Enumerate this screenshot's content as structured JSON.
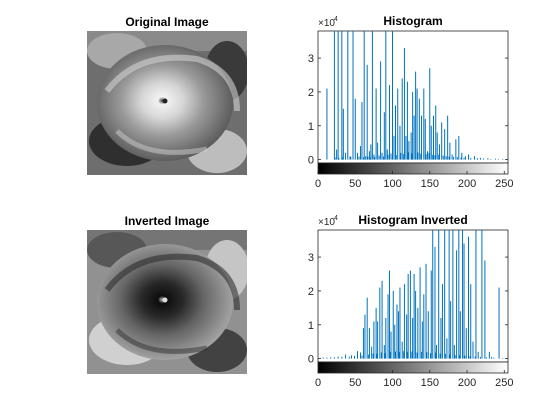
{
  "images": [
    {
      "title": "Original Image",
      "variant": "original"
    },
    {
      "title": "Inverted Image",
      "variant": "inverted"
    }
  ],
  "chart_data": [
    {
      "type": "bar",
      "title": "Histogram",
      "xlabel": "",
      "ylabel": "",
      "xlim": [
        0,
        255
      ],
      "ylim": [
        -1000,
        38000
      ],
      "xticks": [
        0,
        50,
        100,
        150,
        200,
        250
      ],
      "yticks": [
        0,
        10000,
        20000,
        30000
      ],
      "ytick_labels": [
        "0",
        "1",
        "2",
        "3"
      ],
      "exponent_label": "×10",
      "exponent_power": "4",
      "colorbar": "black-to-white",
      "color": "#0072BD",
      "bars": [
        [
          12,
          21000
        ],
        [
          22,
          38000
        ],
        [
          25,
          3000
        ],
        [
          27,
          38000
        ],
        [
          32,
          38000
        ],
        [
          34,
          15000
        ],
        [
          37,
          2000
        ],
        [
          40,
          38000
        ],
        [
          43,
          1000
        ],
        [
          47,
          38000
        ],
        [
          50,
          18000
        ],
        [
          53,
          2000
        ],
        [
          57,
          4000
        ],
        [
          59,
          17000
        ],
        [
          62,
          38000
        ],
        [
          64,
          1000
        ],
        [
          66,
          28000
        ],
        [
          69,
          2500
        ],
        [
          71,
          4500
        ],
        [
          73,
          38000
        ],
        [
          75,
          1500
        ],
        [
          78,
          21000
        ],
        [
          80,
          5000
        ],
        [
          84,
          29000
        ],
        [
          86,
          2000
        ],
        [
          89,
          14000
        ],
        [
          91,
          38000
        ],
        [
          93,
          3000
        ],
        [
          96,
          22000
        ],
        [
          100,
          38000
        ],
        [
          102,
          7000
        ],
        [
          104,
          16000
        ],
        [
          107,
          21000
        ],
        [
          110,
          10000
        ],
        [
          113,
          24000
        ],
        [
          116,
          33000
        ],
        [
          118,
          7000
        ],
        [
          120,
          23000
        ],
        [
          122,
          5500
        ],
        [
          125,
          8000
        ],
        [
          127,
          20000
        ],
        [
          129,
          13000
        ],
        [
          131,
          26000
        ],
        [
          133,
          21000
        ],
        [
          136,
          18000
        ],
        [
          139,
          13000
        ],
        [
          142,
          21000
        ],
        [
          144,
          12000
        ],
        [
          147,
          2500
        ],
        [
          150,
          27000
        ],
        [
          152,
          10000
        ],
        [
          155,
          13000
        ],
        [
          158,
          16000
        ],
        [
          160,
          8000
        ],
        [
          163,
          4500
        ],
        [
          166,
          11000
        ],
        [
          170,
          9000
        ],
        [
          174,
          13000
        ],
        [
          177,
          5000
        ],
        [
          180,
          1500
        ],
        [
          185,
          6000
        ],
        [
          189,
          7000
        ],
        [
          193,
          2000
        ],
        [
          198,
          1000
        ],
        [
          202,
          1500
        ],
        [
          210,
          1000
        ],
        [
          218,
          500
        ],
        [
          228,
          400
        ],
        [
          238,
          300
        ],
        [
          248,
          200
        ]
      ],
      "small_bars": [
        [
          23,
          600
        ],
        [
          28,
          500
        ],
        [
          33,
          700
        ],
        [
          44,
          800
        ],
        [
          55,
          900
        ],
        [
          61,
          700
        ],
        [
          67,
          900
        ],
        [
          70,
          600
        ],
        [
          76,
          800
        ],
        [
          82,
          1200
        ],
        [
          88,
          900
        ],
        [
          94,
          1500
        ],
        [
          98,
          1800
        ],
        [
          105,
          1400
        ],
        [
          111,
          2000
        ],
        [
          115,
          1700
        ],
        [
          121,
          2200
        ],
        [
          126,
          1900
        ],
        [
          134,
          2100
        ],
        [
          138,
          1800
        ],
        [
          145,
          1600
        ],
        [
          149,
          2000
        ],
        [
          154,
          1400
        ],
        [
          157,
          1300
        ],
        [
          162,
          1500
        ],
        [
          168,
          1200
        ],
        [
          172,
          1000
        ],
        [
          176,
          900
        ],
        [
          182,
          800
        ],
        [
          187,
          700
        ],
        [
          192,
          600
        ],
        [
          196,
          600
        ],
        [
          205,
          500
        ],
        [
          214,
          400
        ],
        [
          222,
          300
        ],
        [
          232,
          200
        ],
        [
          242,
          150
        ]
      ]
    },
    {
      "type": "bar",
      "title": "Histogram Inverted",
      "xlabel": "",
      "ylabel": "",
      "xlim": [
        0,
        255
      ],
      "ylim": [
        -1000,
        38000
      ],
      "xticks": [
        0,
        50,
        100,
        150,
        200,
        250
      ],
      "yticks": [
        0,
        10000,
        20000,
        30000
      ],
      "ytick_labels": [
        "0",
        "1",
        "2",
        "3"
      ],
      "exponent_label": "×10",
      "exponent_power": "4",
      "colorbar": "black-to-white",
      "color": "#0072BD",
      "bars": [
        [
          7,
          300
        ],
        [
          17,
          400
        ],
        [
          27,
          600
        ],
        [
          37,
          1200
        ],
        [
          45,
          1000
        ],
        [
          53,
          2200
        ],
        [
          57,
          1800
        ],
        [
          61,
          9000
        ],
        [
          63,
          13000
        ],
        [
          66,
          18000
        ],
        [
          69,
          9000
        ],
        [
          72,
          3500
        ],
        [
          75,
          11000
        ],
        [
          78,
          15000
        ],
        [
          80,
          11000
        ],
        [
          83,
          21000
        ],
        [
          86,
          23000
        ],
        [
          89,
          4000
        ],
        [
          91,
          12000
        ],
        [
          94,
          19000
        ],
        [
          96,
          26000
        ],
        [
          98,
          8000
        ],
        [
          101,
          20000
        ],
        [
          103,
          10000
        ],
        [
          106,
          16000
        ],
        [
          108,
          14000
        ],
        [
          110,
          21000
        ],
        [
          113,
          5000
        ],
        [
          116,
          22000
        ],
        [
          119,
          13000
        ],
        [
          121,
          25000
        ],
        [
          124,
          26000
        ],
        [
          127,
          12000
        ],
        [
          129,
          25000
        ],
        [
          131,
          20000
        ],
        [
          134,
          15000
        ],
        [
          137,
          27000
        ],
        [
          140,
          11000
        ],
        [
          142,
          19000
        ],
        [
          145,
          28000
        ],
        [
          148,
          14000
        ],
        [
          152,
          26000
        ],
        [
          154,
          38000
        ],
        [
          157,
          33000
        ],
        [
          159,
          4000
        ],
        [
          162,
          38000
        ],
        [
          165,
          12000
        ],
        [
          167,
          22000
        ],
        [
          170,
          38000
        ],
        [
          173,
          6000
        ],
        [
          176,
          38000
        ],
        [
          178,
          17000
        ],
        [
          181,
          38000
        ],
        [
          183,
          4000
        ],
        [
          186,
          32000
        ],
        [
          189,
          38000
        ],
        [
          191,
          14000
        ],
        [
          194,
          38000
        ],
        [
          196,
          34000
        ],
        [
          199,
          9000
        ],
        [
          202,
          36000
        ],
        [
          205,
          22000
        ],
        [
          208,
          5000
        ],
        [
          212,
          38000
        ],
        [
          215,
          2000
        ],
        [
          220,
          38000
        ],
        [
          224,
          29000
        ],
        [
          230,
          2000
        ],
        [
          233,
          500
        ],
        [
          243,
          21000
        ]
      ],
      "small_bars": [
        [
          12,
          300
        ],
        [
          22,
          400
        ],
        [
          32,
          500
        ],
        [
          42,
          600
        ],
        [
          49,
          800
        ],
        [
          59,
          900
        ],
        [
          68,
          1200
        ],
        [
          74,
          1500
        ],
        [
          79,
          1400
        ],
        [
          85,
          1800
        ],
        [
          90,
          1600
        ],
        [
          97,
          2000
        ],
        [
          104,
          2100
        ],
        [
          109,
          1900
        ],
        [
          115,
          2200
        ],
        [
          120,
          2000
        ],
        [
          126,
          2100
        ],
        [
          133,
          1800
        ],
        [
          139,
          2000
        ],
        [
          146,
          1900
        ],
        [
          151,
          1600
        ],
        [
          158,
          1800
        ],
        [
          164,
          1500
        ],
        [
          171,
          1400
        ],
        [
          177,
          1200
        ],
        [
          184,
          1100
        ],
        [
          190,
          1000
        ],
        [
          197,
          900
        ],
        [
          204,
          700
        ],
        [
          211,
          600
        ],
        [
          218,
          500
        ],
        [
          226,
          400
        ],
        [
          236,
          300
        ],
        [
          248,
          200
        ]
      ]
    }
  ]
}
